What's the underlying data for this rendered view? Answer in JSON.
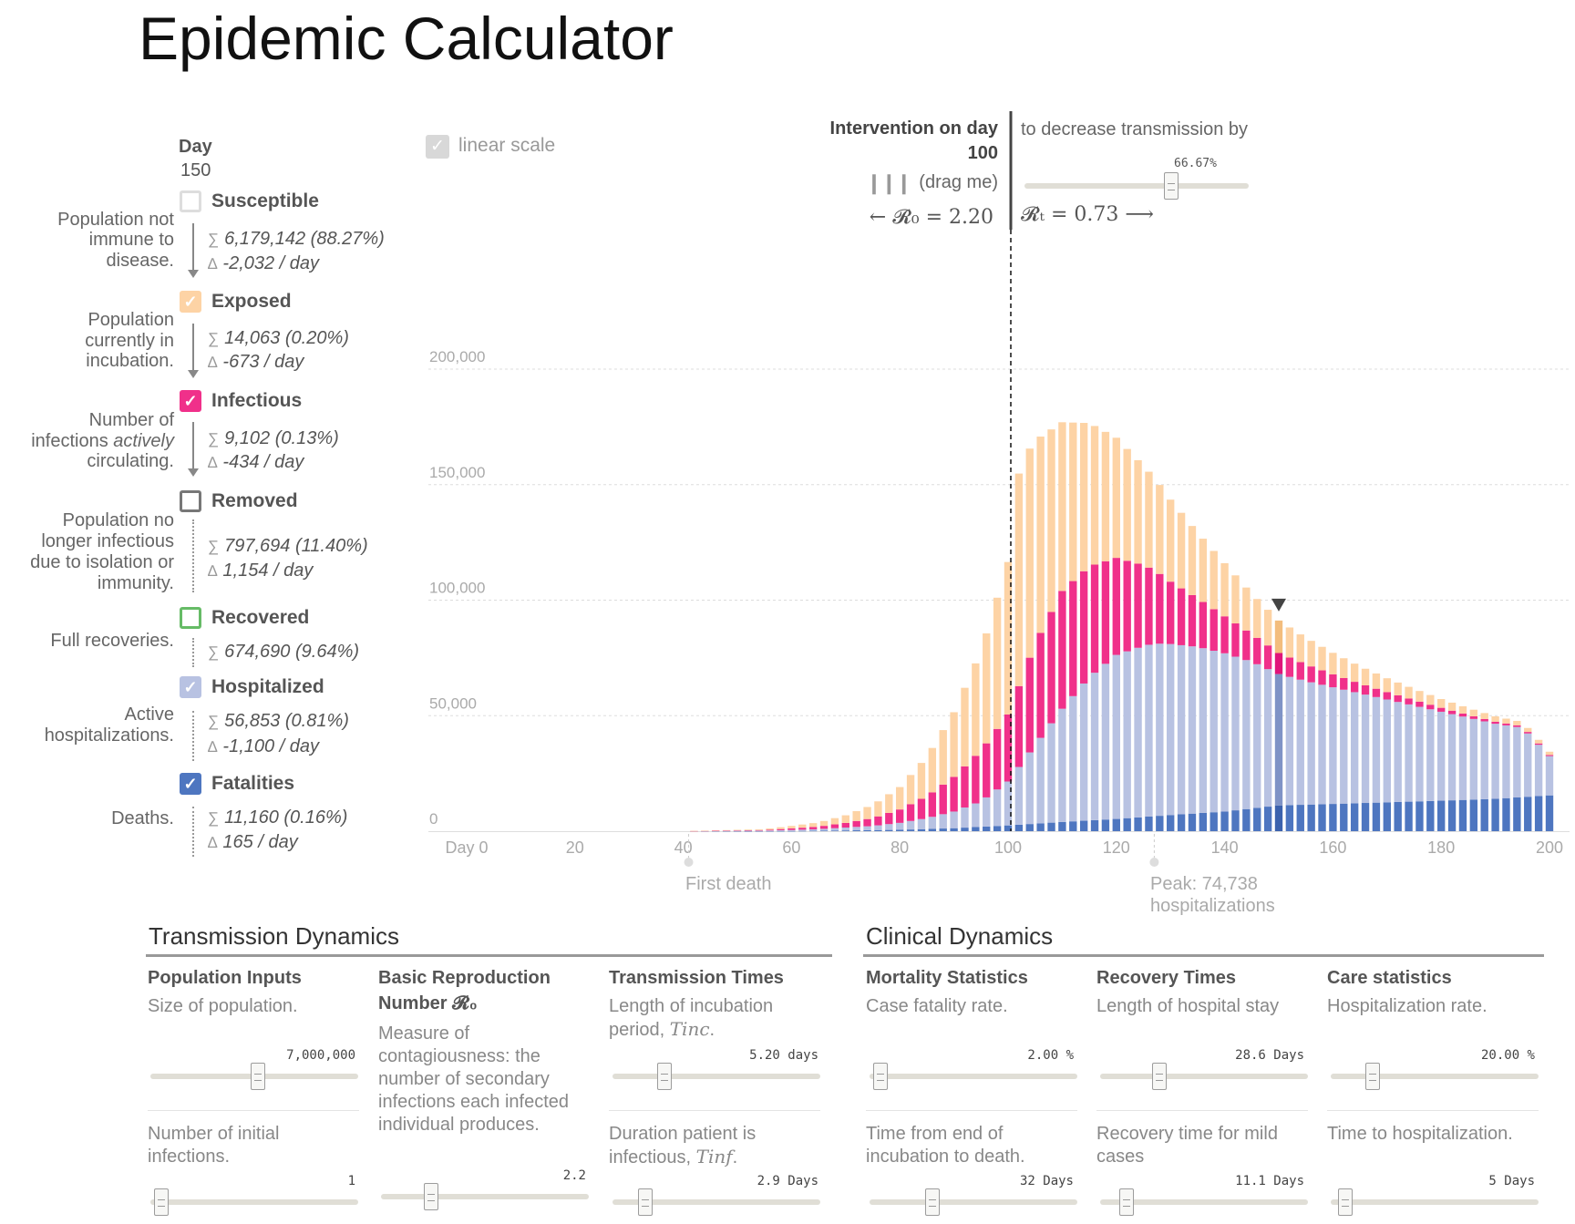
{
  "title": "Epidemic Calculator",
  "day": {
    "label": "Day",
    "value": "150"
  },
  "categories": [
    {
      "label": "Susceptible",
      "checked": false,
      "color": "#dddddd",
      "desc": [
        "Population not",
        "immune to",
        "disease."
      ],
      "sum": "6,179,142 (88.27%)",
      "delta": "-2,032 / day"
    },
    {
      "label": "Exposed",
      "checked": true,
      "color": "#fdd3a5",
      "desc": [
        "Population",
        "currently in",
        "incubation."
      ],
      "sum": "14,063 (0.20%)",
      "delta": "-673 / day"
    },
    {
      "label": "Infectious",
      "checked": true,
      "color": "#f0308a",
      "desc": [
        "Number of",
        "infections actively",
        "circulating."
      ],
      "sum": "9,102 (0.13%)",
      "delta": "-434 / day"
    },
    {
      "label": "Removed",
      "checked": false,
      "color": "#777777",
      "desc": [
        "Population no",
        "longer infectious",
        "due to isolation or",
        "immunity."
      ],
      "sum": "797,694 (11.40%)",
      "delta": "1,154 / day"
    },
    {
      "label": "Recovered",
      "checked": false,
      "color": "#66bb66",
      "desc": [
        "Full recoveries."
      ],
      "sum": "674,690 (9.64%)",
      "delta": ""
    },
    {
      "label": "Hospitalized",
      "checked": true,
      "color": "#b8c2e2",
      "desc": [
        "Active",
        "hospitalizations."
      ],
      "sum": "56,853 (0.81%)",
      "delta": "-1,100 / day"
    },
    {
      "label": "Fatalities",
      "checked": true,
      "color": "#4e76c0",
      "desc": [
        "Deaths."
      ],
      "sum": "11,160 (0.16%)",
      "delta": "165 / day"
    }
  ],
  "controls": {
    "linear_scale_label": "linear scale",
    "linear_scale_checked": true,
    "intervention_label": "Intervention on day",
    "intervention_day": "100",
    "drag_hint": "(drag me)",
    "r0_text": "← 𝓡₀ = 2.20",
    "decrease_label": "to decrease transmission by",
    "decrease_value": "66.67%",
    "decrease_fraction": 0.6667,
    "rt_text": "𝓡ₜ = 0.73 ⟶"
  },
  "annotations": {
    "first_death": "First death",
    "first_death_day": 41,
    "peak_line1": "Peak: 74,738",
    "peak_line2": "hospitalizations",
    "peak_day": 127
  },
  "chart_data": {
    "type": "bar",
    "stacked": true,
    "x_tick_labels": [
      "Day 0",
      "20",
      "40",
      "60",
      "80",
      "100",
      "120",
      "140",
      "160",
      "180",
      "200"
    ],
    "xlim": [
      0,
      200
    ],
    "y_tick_labels": [
      "0",
      "50,000",
      "100,000",
      "150,000",
      "200,000"
    ],
    "ylim": [
      0,
      245000
    ],
    "selected_day": 150,
    "intervention_day": 100,
    "grid": true,
    "series": [
      {
        "name": "Fatalities",
        "color": "#4e76c0",
        "points": [
          [
            40,
            0
          ],
          [
            60,
            60
          ],
          [
            80,
            600
          ],
          [
            90,
            1300
          ],
          [
            100,
            2500
          ],
          [
            110,
            4000
          ],
          [
            120,
            5300
          ],
          [
            130,
            7000
          ],
          [
            140,
            8500
          ],
          [
            150,
            11160
          ],
          [
            160,
            11800
          ],
          [
            170,
            12500
          ],
          [
            180,
            13200
          ],
          [
            190,
            14000
          ],
          [
            200,
            15500
          ]
        ]
      },
      {
        "name": "Hospitalized",
        "color": "#b8c2e2",
        "points": [
          [
            40,
            0
          ],
          [
            55,
            200
          ],
          [
            65,
            700
          ],
          [
            75,
            1800
          ],
          [
            80,
            3000
          ],
          [
            85,
            4700
          ],
          [
            90,
            7200
          ],
          [
            95,
            11000
          ],
          [
            100,
            19000
          ],
          [
            105,
            34000
          ],
          [
            110,
            49000
          ],
          [
            115,
            62000
          ],
          [
            120,
            71000
          ],
          [
            125,
            74000
          ],
          [
            127,
            74738
          ],
          [
            130,
            74000
          ],
          [
            135,
            72000
          ],
          [
            140,
            68500
          ],
          [
            145,
            63500
          ],
          [
            150,
            56853
          ],
          [
            155,
            53500
          ],
          [
            160,
            50500
          ],
          [
            165,
            47500
          ],
          [
            170,
            44500
          ],
          [
            175,
            41500
          ],
          [
            180,
            38500
          ],
          [
            185,
            35500
          ],
          [
            190,
            32500
          ],
          [
            195,
            30000
          ],
          [
            200,
            17000
          ]
        ]
      },
      {
        "name": "Infectious",
        "color": "#f0308a",
        "points": [
          [
            40,
            0
          ],
          [
            55,
            250
          ],
          [
            65,
            1100
          ],
          [
            70,
            2000
          ],
          [
            75,
            3400
          ],
          [
            80,
            5800
          ],
          [
            85,
            9500
          ],
          [
            90,
            15000
          ],
          [
            95,
            22000
          ],
          [
            100,
            29000
          ],
          [
            105,
            44000
          ],
          [
            110,
            51000
          ],
          [
            115,
            48000
          ],
          [
            120,
            42000
          ],
          [
            125,
            35000
          ],
          [
            130,
            27000
          ],
          [
            135,
            21000
          ],
          [
            140,
            16000
          ],
          [
            145,
            12000
          ],
          [
            150,
            9102
          ],
          [
            155,
            7200
          ],
          [
            160,
            5600
          ],
          [
            165,
            4200
          ],
          [
            170,
            3200
          ],
          [
            175,
            2400
          ],
          [
            180,
            1700
          ],
          [
            185,
            1200
          ],
          [
            190,
            900
          ],
          [
            195,
            700
          ],
          [
            200,
            500
          ]
        ]
      },
      {
        "name": "Exposed",
        "color": "#fdd3a5",
        "points": [
          [
            40,
            0
          ],
          [
            55,
            400
          ],
          [
            65,
            1800
          ],
          [
            70,
            3300
          ],
          [
            75,
            5700
          ],
          [
            80,
            9700
          ],
          [
            85,
            17000
          ],
          [
            90,
            28000
          ],
          [
            95,
            43000
          ],
          [
            100,
            66000
          ],
          [
            101,
            91000
          ],
          [
            103,
            93000
          ],
          [
            105,
            88000
          ],
          [
            110,
            73000
          ],
          [
            115,
            62000
          ],
          [
            120,
            52000
          ],
          [
            125,
            43000
          ],
          [
            130,
            35500
          ],
          [
            135,
            28500
          ],
          [
            140,
            23000
          ],
          [
            145,
            17500
          ],
          [
            150,
            14063
          ],
          [
            155,
            11500
          ],
          [
            160,
            9300
          ],
          [
            165,
            7500
          ],
          [
            170,
            6000
          ],
          [
            175,
            4800
          ],
          [
            180,
            3800
          ],
          [
            185,
            3000
          ],
          [
            190,
            2300
          ],
          [
            195,
            1800
          ],
          [
            200,
            1400
          ]
        ]
      }
    ]
  },
  "transmission": {
    "title": "Transmission Dynamics",
    "population": {
      "title": "Population Inputs",
      "desc": "Size of population.",
      "value": "7,000,000",
      "fraction": 0.52
    },
    "initial": {
      "desc": "Number of initial infections.",
      "value": "1",
      "fraction": 0.02
    },
    "r0": {
      "title": "Basic Reproduction",
      "title2": "Number 𝓡₀",
      "desc": "Measure of contagiousness: the number of secondary infections each infected individual produces.",
      "value": "2.2",
      "fraction": 0.22
    },
    "times": {
      "title": "Transmission Times"
    },
    "incubation": {
      "desc": "Length of incubation period,",
      "symbol": "Tinc",
      "value": "5.20 days",
      "fraction": 0.23
    },
    "infectious": {
      "desc": "Duration patient is infectious,",
      "symbol": "Tinf",
      "value": "2.9 Days",
      "fraction": 0.13
    }
  },
  "clinical": {
    "title": "Clinical Dynamics",
    "mortality": {
      "title": "Mortality Statistics",
      "desc": "Case fatality rate.",
      "value": "2.00 %",
      "fraction": 0.02
    },
    "death_time": {
      "desc": "Time from end of incubation to death.",
      "value": "32 Days",
      "fraction": 0.29
    },
    "recovery": {
      "title": "Recovery Times",
      "desc": "Length of hospital stay",
      "value": "28.6 Days",
      "fraction": 0.27
    },
    "mild": {
      "desc": "Recovery time for mild cases",
      "value": "11.1 Days",
      "fraction": 0.1
    },
    "care": {
      "title": "Care statistics",
      "desc": "Hospitalization rate.",
      "value": "20.00 %",
      "fraction": 0.18
    },
    "hosp_time": {
      "desc": "Time to hospitalization.",
      "value": "5 Days",
      "fraction": 0.04
    }
  }
}
